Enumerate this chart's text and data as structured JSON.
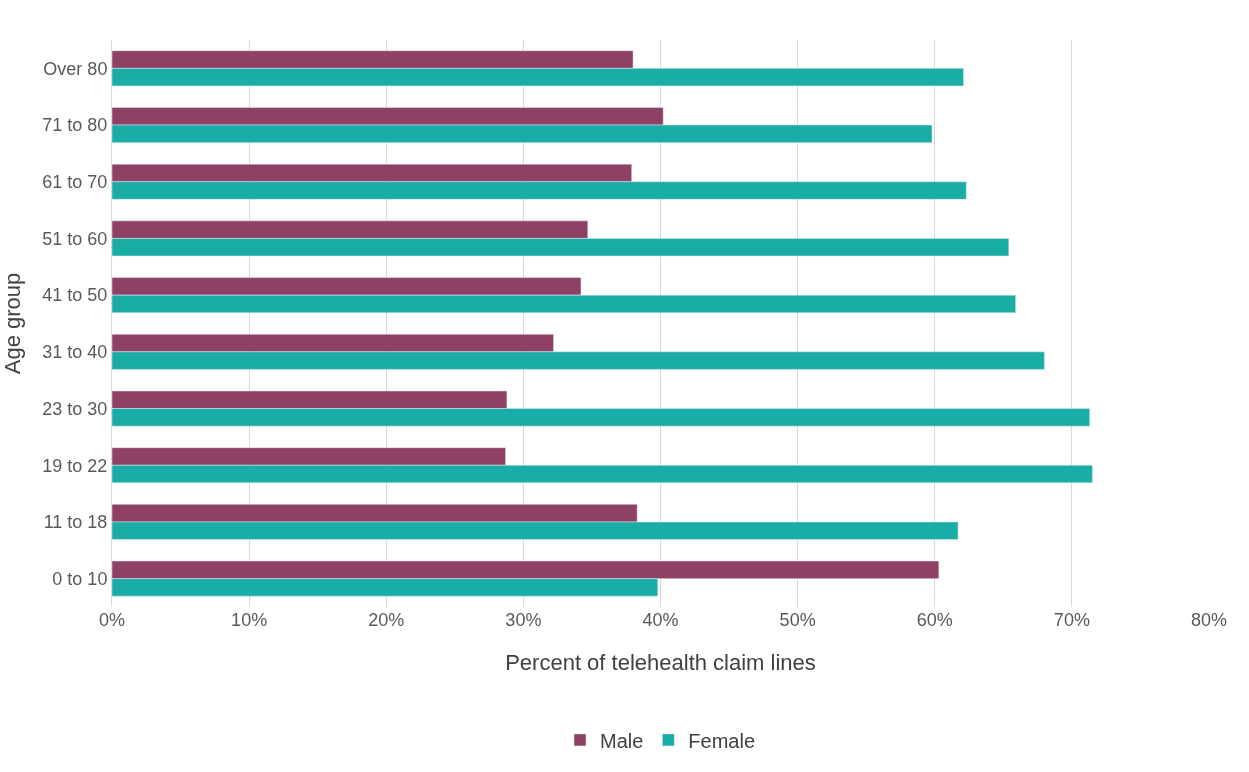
{
  "chart_data": {
    "type": "bar",
    "orientation": "horizontal",
    "xlabel": "Percent of telehealth claim lines",
    "ylabel": "Age group",
    "categories": [
      "Over 80",
      "71 to 80",
      "61 to 70",
      "51 to 60",
      "41 to 50",
      "31 to 40",
      "23 to 30",
      "19 to 22",
      "11 to 18",
      "0 to 10"
    ],
    "series": [
      {
        "name": "Male",
        "color": "#8e4165",
        "values": [
          38.0,
          40.2,
          37.9,
          34.7,
          34.2,
          32.2,
          28.8,
          28.7,
          38.3,
          60.3
        ]
      },
      {
        "name": "Female",
        "color": "#1aaca6",
        "values": [
          62.1,
          59.8,
          62.3,
          65.4,
          65.9,
          68.0,
          71.3,
          71.5,
          61.7,
          39.8
        ]
      }
    ],
    "xlim": [
      0,
      80
    ],
    "xticks": [
      {
        "value": 0,
        "label": "0%"
      },
      {
        "value": 10,
        "label": "10%"
      },
      {
        "value": 20,
        "label": "20%"
      },
      {
        "value": 30,
        "label": "30%"
      },
      {
        "value": 40,
        "label": "40%"
      },
      {
        "value": 50,
        "label": "50%"
      },
      {
        "value": 60,
        "label": "60%"
      },
      {
        "value": 70,
        "label": "70%"
      },
      {
        "value": 80,
        "label": "80%"
      }
    ],
    "grid": "x",
    "legend": "bottom"
  }
}
